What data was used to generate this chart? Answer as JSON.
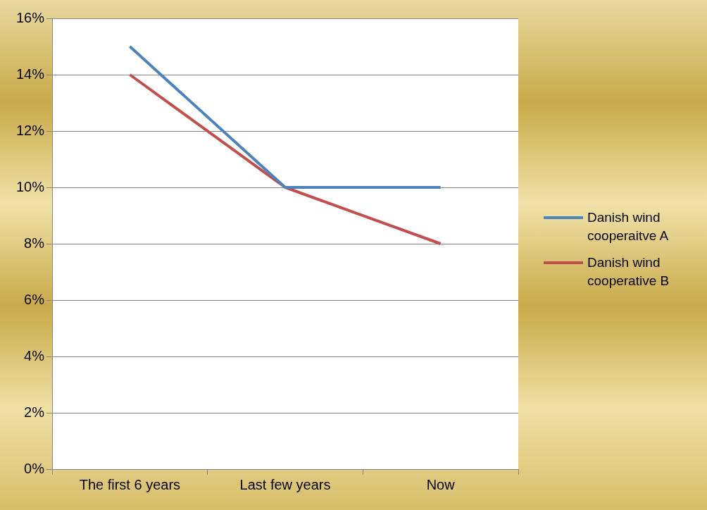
{
  "chart_data": {
    "type": "line",
    "categories": [
      "The first 6 years",
      "Last few years",
      "Now"
    ],
    "series": [
      {
        "name": "Danish wind cooperaitve A",
        "color": "#4f81bd",
        "values": [
          15,
          10,
          10
        ]
      },
      {
        "name": "Danish wind cooperative B",
        "color": "#c0504d",
        "values": [
          14,
          10,
          8
        ]
      }
    ],
    "ylim": [
      0,
      16
    ],
    "yticks": [
      {
        "value": 0,
        "label": "0%"
      },
      {
        "value": 2,
        "label": "2%"
      },
      {
        "value": 4,
        "label": "4%"
      },
      {
        "value": 6,
        "label": "6%"
      },
      {
        "value": 8,
        "label": "8%"
      },
      {
        "value": 10,
        "label": "10%"
      },
      {
        "value": 12,
        "label": "12%"
      },
      {
        "value": 14,
        "label": "14%"
      },
      {
        "value": 16,
        "label": "16%"
      }
    ],
    "grid": "y",
    "legend": "right",
    "marker": "none",
    "line_style": "solid"
  }
}
